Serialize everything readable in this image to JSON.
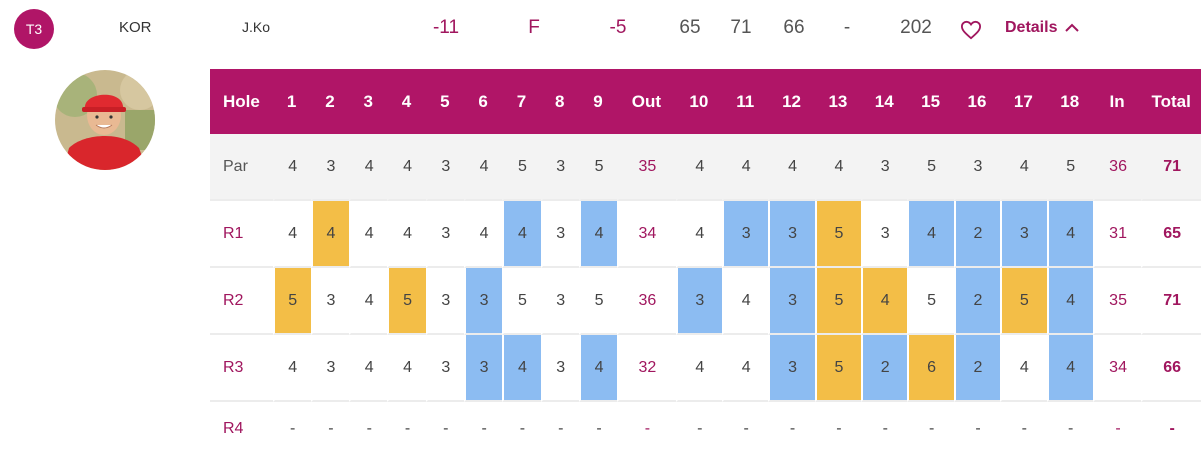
{
  "player": {
    "rank": "T3",
    "country": "KOR",
    "name": "J.Ko",
    "to_par": "-11",
    "thru": "F",
    "today": "-5",
    "r1": "65",
    "r2": "71",
    "r3": "66",
    "r4": "-",
    "total": "202",
    "details_label": "Details"
  },
  "colors": {
    "brand": "#b01567",
    "birdie": "#8cbcf2",
    "bogey": "#f3be47"
  },
  "scorecard": {
    "headers": [
      "Hole",
      "1",
      "2",
      "3",
      "4",
      "5",
      "6",
      "7",
      "8",
      "9",
      "Out",
      "10",
      "11",
      "12",
      "13",
      "14",
      "15",
      "16",
      "17",
      "18",
      "In",
      "Total"
    ],
    "rows": [
      {
        "label": "Par",
        "scores": [
          "4",
          "3",
          "4",
          "4",
          "3",
          "4",
          "5",
          "3",
          "5",
          "35",
          "4",
          "4",
          "4",
          "4",
          "3",
          "5",
          "3",
          "4",
          "5",
          "36",
          "71"
        ],
        "marks": [
          "",
          "",
          "",
          "",
          "",
          "",
          "",
          "",
          "",
          "",
          "",
          "",
          "",
          "",
          "",
          "",
          "",
          "",
          "",
          "",
          ""
        ]
      },
      {
        "label": "R1",
        "scores": [
          "4",
          "4",
          "4",
          "4",
          "3",
          "4",
          "4",
          "3",
          "4",
          "34",
          "4",
          "3",
          "3",
          "5",
          "3",
          "4",
          "2",
          "3",
          "4",
          "31",
          "65"
        ],
        "marks": [
          "",
          "bogey",
          "",
          "",
          "",
          "",
          "birdie",
          "",
          "birdie",
          "",
          "",
          "birdie",
          "birdie",
          "bogey",
          "",
          "birdie",
          "birdie",
          "birdie",
          "birdie",
          "",
          ""
        ]
      },
      {
        "label": "R2",
        "scores": [
          "5",
          "3",
          "4",
          "5",
          "3",
          "3",
          "5",
          "3",
          "5",
          "36",
          "3",
          "4",
          "3",
          "5",
          "4",
          "5",
          "2",
          "5",
          "4",
          "35",
          "71"
        ],
        "marks": [
          "bogey",
          "",
          "",
          "bogey",
          "",
          "birdie",
          "",
          "",
          "",
          "",
          "birdie",
          "",
          "birdie",
          "bogey",
          "bogey",
          "",
          "birdie",
          "bogey",
          "birdie",
          "",
          ""
        ]
      },
      {
        "label": "R3",
        "scores": [
          "4",
          "3",
          "4",
          "4",
          "3",
          "3",
          "4",
          "3",
          "4",
          "32",
          "4",
          "4",
          "3",
          "5",
          "2",
          "6",
          "2",
          "4",
          "4",
          "34",
          "66"
        ],
        "marks": [
          "",
          "",
          "",
          "",
          "",
          "birdie",
          "birdie",
          "",
          "birdie",
          "",
          "",
          "",
          "birdie",
          "bogey",
          "birdie",
          "bogey",
          "birdie",
          "",
          "birdie",
          "",
          ""
        ]
      },
      {
        "label": "R4",
        "scores": [
          "-",
          "-",
          "-",
          "-",
          "-",
          "-",
          "-",
          "-",
          "-",
          "-",
          "-",
          "-",
          "-",
          "-",
          "-",
          "-",
          "-",
          "-",
          "-",
          "-",
          "-"
        ],
        "marks": [
          "",
          "",
          "",
          "",
          "",
          "",
          "",
          "",
          "",
          "",
          "",
          "",
          "",
          "",
          "",
          "",
          "",
          "",
          "",
          "",
          ""
        ]
      }
    ]
  }
}
